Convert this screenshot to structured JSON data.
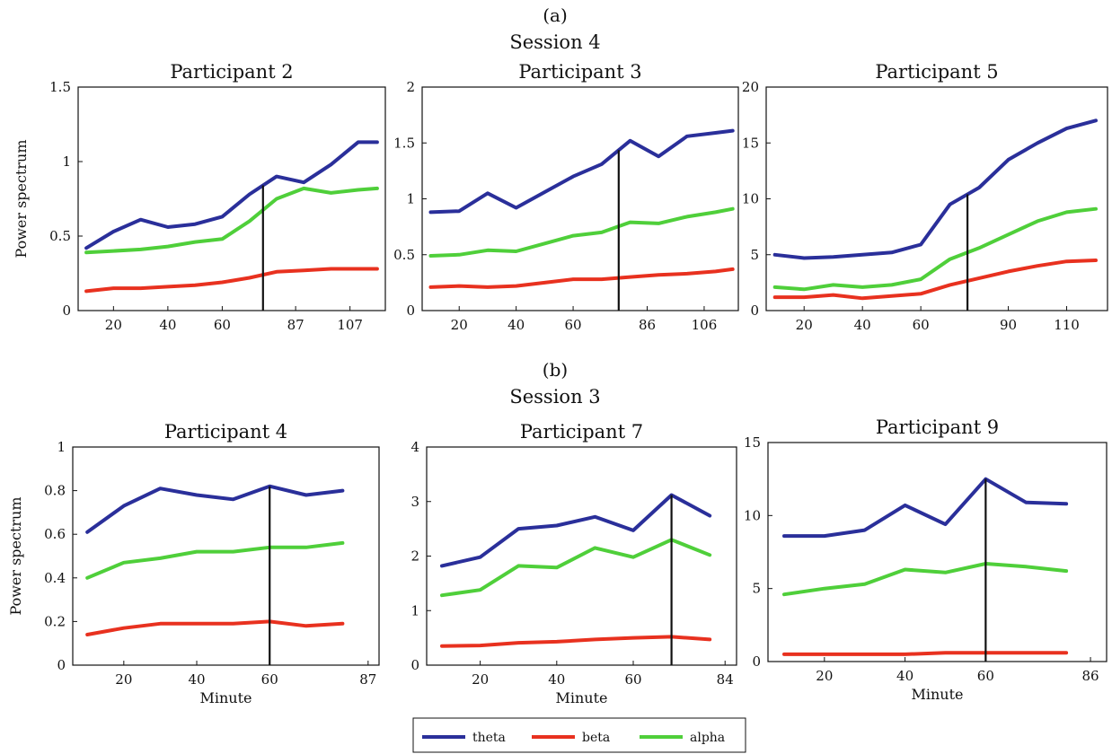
{
  "panels": [
    {
      "label": "(a)",
      "session": "Session 4"
    },
    {
      "label": "(b)",
      "session": "Session 3"
    }
  ],
  "legend": [
    {
      "name": "theta",
      "color": "#2a2f9a"
    },
    {
      "name": "beta",
      "color": "#e8311f"
    },
    {
      "name": "alpha",
      "color": "#4fcf3a"
    }
  ],
  "chart_data": [
    {
      "type": "line",
      "panel": "(a)",
      "title": "Participant 2",
      "xlabel": "",
      "ylabel": "Power spectrum",
      "xlim": [
        7,
        120
      ],
      "ylim": [
        0,
        1.5
      ],
      "xticks": [
        20,
        40,
        60,
        87,
        107
      ],
      "yticks": [
        0,
        0.5,
        1,
        1.5
      ],
      "ytick_labels": [
        "0",
        "0.5",
        "1",
        "1.5"
      ],
      "x": [
        10,
        20,
        30,
        40,
        50,
        60,
        70,
        80,
        90,
        100,
        110,
        117
      ],
      "series": [
        {
          "name": "theta",
          "values": [
            0.42,
            0.53,
            0.61,
            0.56,
            0.58,
            0.63,
            0.78,
            0.9,
            0.86,
            0.98,
            1.13,
            1.13
          ]
        },
        {
          "name": "beta",
          "values": [
            0.13,
            0.15,
            0.15,
            0.16,
            0.17,
            0.19,
            0.22,
            0.26,
            0.27,
            0.28,
            0.28,
            0.28
          ]
        },
        {
          "name": "alpha",
          "values": [
            0.39,
            0.4,
            0.41,
            0.43,
            0.46,
            0.48,
            0.6,
            0.75,
            0.82,
            0.79,
            0.81,
            0.82
          ]
        }
      ],
      "marker_x": 75
    },
    {
      "type": "line",
      "panel": "(a)",
      "title": "Participant 3",
      "xlabel": "",
      "ylabel": "",
      "xlim": [
        7,
        118
      ],
      "ylim": [
        0,
        2
      ],
      "xticks": [
        20,
        40,
        60,
        86,
        106
      ],
      "yticks": [
        0,
        0.5,
        1,
        1.5,
        2
      ],
      "ytick_labels": [
        "0",
        "0.5",
        "1",
        "1.5",
        "2"
      ],
      "x": [
        10,
        20,
        30,
        40,
        50,
        60,
        70,
        80,
        90,
        100,
        110,
        116
      ],
      "series": [
        {
          "name": "theta",
          "values": [
            0.88,
            0.89,
            1.05,
            0.92,
            1.06,
            1.2,
            1.31,
            1.52,
            1.38,
            1.56,
            1.59,
            1.61
          ]
        },
        {
          "name": "beta",
          "values": [
            0.21,
            0.22,
            0.21,
            0.22,
            0.25,
            0.28,
            0.28,
            0.3,
            0.32,
            0.33,
            0.35,
            0.37
          ]
        },
        {
          "name": "alpha",
          "values": [
            0.49,
            0.5,
            0.54,
            0.53,
            0.6,
            0.67,
            0.7,
            0.79,
            0.78,
            0.84,
            0.88,
            0.91
          ]
        }
      ],
      "marker_x": 76
    },
    {
      "type": "line",
      "panel": "(a)",
      "title": "Participant 5",
      "xlabel": "",
      "ylabel": "",
      "xlim": [
        7,
        124
      ],
      "ylim": [
        0,
        20
      ],
      "xticks": [
        20,
        40,
        60,
        90,
        110
      ],
      "yticks": [
        0,
        5,
        10,
        15,
        20
      ],
      "ytick_labels": [
        "0",
        "5",
        "10",
        "15",
        "20"
      ],
      "x": [
        10,
        20,
        30,
        40,
        50,
        60,
        70,
        80,
        90,
        100,
        110,
        120
      ],
      "series": [
        {
          "name": "theta",
          "values": [
            5.0,
            4.7,
            4.8,
            5.0,
            5.2,
            5.9,
            9.5,
            11.0,
            13.5,
            15.0,
            16.3,
            17.0
          ]
        },
        {
          "name": "beta",
          "values": [
            1.2,
            1.2,
            1.4,
            1.1,
            1.3,
            1.5,
            2.3,
            2.9,
            3.5,
            4.0,
            4.4,
            4.5
          ]
        },
        {
          "name": "alpha",
          "values": [
            2.1,
            1.9,
            2.3,
            2.1,
            2.3,
            2.8,
            4.6,
            5.6,
            6.8,
            8.0,
            8.8,
            9.1
          ]
        }
      ],
      "marker_x": 76
    },
    {
      "type": "line",
      "panel": "(b)",
      "title": "Participant 4",
      "xlabel": "Minute",
      "ylabel": "Power spectrum",
      "xlim": [
        6,
        90
      ],
      "ylim": [
        0,
        1
      ],
      "xticks": [
        20,
        40,
        60,
        87
      ],
      "yticks": [
        0,
        0.2,
        0.4,
        0.6,
        0.8,
        1
      ],
      "ytick_labels": [
        "0",
        "0.2",
        "0.4",
        "0.6",
        "0.8",
        "1"
      ],
      "x": [
        10,
        20,
        30,
        40,
        50,
        60,
        70,
        80
      ],
      "series": [
        {
          "name": "theta",
          "values": [
            0.61,
            0.73,
            0.81,
            0.78,
            0.76,
            0.82,
            0.78,
            0.8
          ]
        },
        {
          "name": "beta",
          "values": [
            0.14,
            0.17,
            0.19,
            0.19,
            0.19,
            0.2,
            0.18,
            0.19
          ]
        },
        {
          "name": "alpha",
          "values": [
            0.4,
            0.47,
            0.49,
            0.52,
            0.52,
            0.54,
            0.54,
            0.56
          ]
        }
      ],
      "marker_x": 60
    },
    {
      "type": "line",
      "panel": "(b)",
      "title": "Participant 7",
      "xlabel": "Minute",
      "ylabel": "",
      "xlim": [
        6,
        87
      ],
      "ylim": [
        0,
        4
      ],
      "xticks": [
        20,
        40,
        60,
        84
      ],
      "yticks": [
        0,
        1,
        2,
        3,
        4
      ],
      "ytick_labels": [
        "0",
        "1",
        "2",
        "3",
        "4"
      ],
      "x": [
        10,
        20,
        30,
        40,
        50,
        60,
        70,
        80
      ],
      "series": [
        {
          "name": "theta",
          "values": [
            1.82,
            1.98,
            2.5,
            2.56,
            2.72,
            2.47,
            3.12,
            2.74
          ]
        },
        {
          "name": "beta",
          "values": [
            0.35,
            0.36,
            0.41,
            0.43,
            0.47,
            0.5,
            0.52,
            0.47
          ]
        },
        {
          "name": "alpha",
          "values": [
            1.28,
            1.38,
            1.82,
            1.79,
            2.15,
            1.98,
            2.3,
            2.02
          ]
        }
      ],
      "marker_x": 70
    },
    {
      "type": "line",
      "panel": "(b)",
      "title": "Participant 9",
      "xlabel": "Minute",
      "ylabel": "",
      "xlim": [
        6,
        90
      ],
      "ylim": [
        0,
        15
      ],
      "xticks": [
        20,
        40,
        60,
        86
      ],
      "yticks": [
        0,
        5,
        10,
        15
      ],
      "ytick_labels": [
        "0",
        "5",
        "10",
        "15"
      ],
      "x": [
        10,
        20,
        30,
        40,
        50,
        60,
        70,
        80
      ],
      "series": [
        {
          "name": "theta",
          "values": [
            8.6,
            8.6,
            9.0,
            10.7,
            9.4,
            12.5,
            10.9,
            10.8
          ]
        },
        {
          "name": "beta",
          "values": [
            0.5,
            0.5,
            0.5,
            0.5,
            0.6,
            0.6,
            0.6,
            0.6
          ]
        },
        {
          "name": "alpha",
          "values": [
            4.6,
            5.0,
            5.3,
            6.3,
            6.1,
            6.7,
            6.5,
            6.2
          ]
        }
      ],
      "marker_x": 60
    }
  ]
}
